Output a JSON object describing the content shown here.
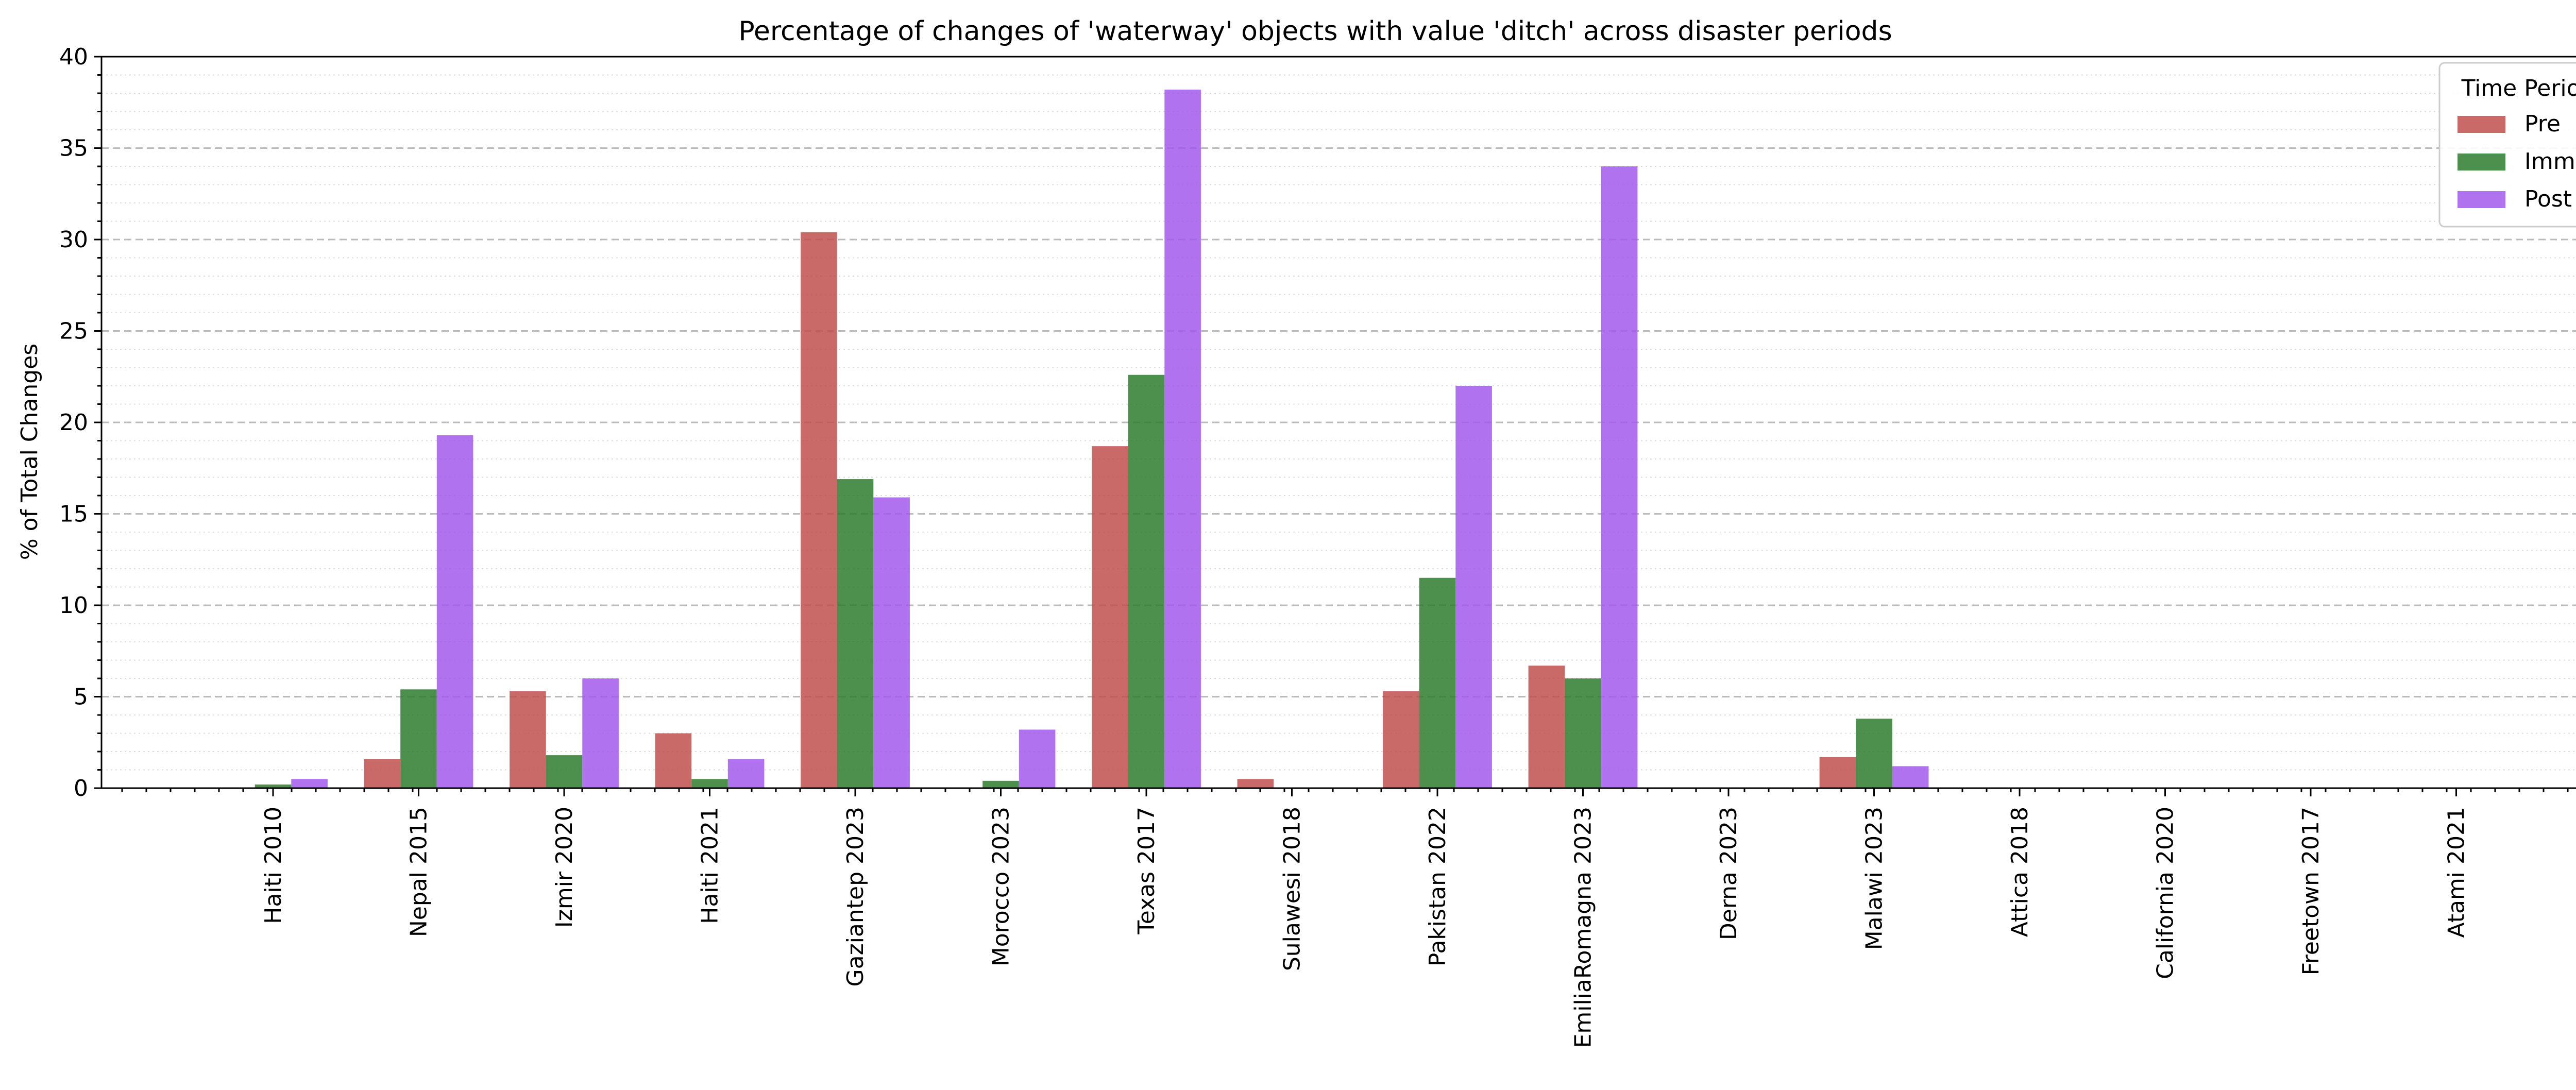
{
  "chart_data": {
    "type": "bar",
    "title": "Percentage of changes of 'waterway' objects with value 'ditch' across disaster periods",
    "xlabel": "",
    "ylabel": "% of Total Changes",
    "ylim": [
      0,
      40
    ],
    "yticks": [
      0,
      5,
      10,
      15,
      20,
      25,
      30,
      35,
      40
    ],
    "grid": "y-major dashed, y-minor dotted",
    "legend": {
      "title": "Time Period",
      "placement": "top-right"
    },
    "categories": [
      "Haiti 2010",
      "Nepal 2015",
      "Izmir 2020",
      "Haiti 2021",
      "Gaziantep 2023",
      "Morocco 2023",
      "Texas 2017",
      "Sulawesi 2018",
      "Pakistan 2022",
      "EmiliaRomagna 2023",
      "Derna 2023",
      "Malawi 2023",
      "Attica 2018",
      "California 2020",
      "Freetown 2017",
      "Atami 2021"
    ],
    "series": [
      {
        "name": "Pre",
        "color": "#c0504d",
        "values": [
          0,
          1.6,
          5.3,
          3.0,
          30.4,
          0,
          18.7,
          0.5,
          5.3,
          6.7,
          0,
          1.7,
          0,
          0,
          0,
          0
        ]
      },
      {
        "name": "Imm",
        "color": "#2e7d2e",
        "values": [
          0.2,
          5.4,
          1.8,
          0.5,
          16.9,
          0.4,
          22.6,
          0,
          11.5,
          6.0,
          0,
          3.8,
          0,
          0,
          0,
          0
        ]
      },
      {
        "name": "Post",
        "color": "#a259ec",
        "values": [
          0.5,
          19.3,
          6.0,
          1.6,
          15.9,
          3.2,
          38.2,
          0,
          22.0,
          34.0,
          0,
          1.2,
          0,
          0,
          0,
          0
        ]
      }
    ]
  }
}
